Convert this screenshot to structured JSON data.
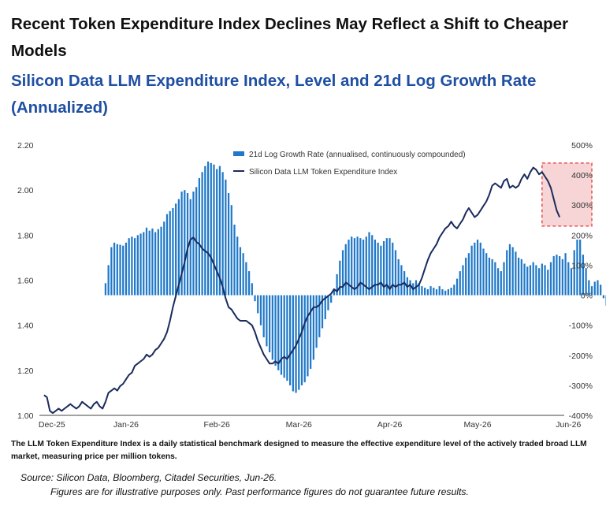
{
  "header": {
    "title": "Recent Token Expenditure Index Declines May Reflect a Shift to Cheaper Models",
    "subtitle": "Silicon Data LLM Expenditure Index, Level and 21d Log Growth Rate (Annualized)"
  },
  "footer": {
    "description": "The LLM Token Expenditure Index is a daily statistical benchmark designed to measure the effective expenditure level of the actively traded broad LLM market, measuring price per million tokens.",
    "source": "Source: Silicon Data, Bloomberg, Citadel Securities, Jun-26.",
    "disclaimer": "Figures are for illustrative purposes only. Past performance figures do not guarantee future results."
  },
  "chart_data": {
    "type": "bar+line",
    "x_tick_labels": [
      "Dec-25",
      "Jan-26",
      "Feb-26",
      "Mar-26",
      "Apr-26",
      "May-26",
      "Jun-26"
    ],
    "y_left": {
      "lim": [
        1.0,
        2.2
      ],
      "ticks": [
        "1.00",
        "1.20",
        "1.40",
        "1.60",
        "1.80",
        "2.00",
        "2.20"
      ]
    },
    "y_right": {
      "lim": [
        -400,
        500
      ],
      "ticks": [
        "-400%",
        "-300%",
        "-200%",
        "-100%",
        "0%",
        "100%",
        "200%",
        "300%",
        "400%",
        "500%"
      ]
    },
    "series": [
      {
        "name": "21d Log Growth Rate (annualised, continuously compounded)",
        "kind": "bar",
        "axis": "right",
        "color": "#1f78c8",
        "x_start": 21,
        "values": [
          40,
          100,
          160,
          175,
          170,
          168,
          165,
          175,
          190,
          195,
          190,
          200,
          205,
          210,
          225,
          215,
          222,
          210,
          220,
          228,
          245,
          270,
          280,
          290,
          305,
          320,
          345,
          350,
          340,
          320,
          345,
          360,
          390,
          410,
          430,
          445,
          440,
          435,
          420,
          430,
          410,
          385,
          340,
          300,
          235,
          195,
          160,
          140,
          110,
          80,
          40,
          -20,
          -60,
          -100,
          -140,
          -170,
          -190,
          -215,
          -235,
          -250,
          -265,
          -275,
          -285,
          -300,
          -320,
          -325,
          -315,
          -300,
          -290,
          -270,
          -245,
          -215,
          -175,
          -140,
          -110,
          -80,
          -50,
          -25,
          20,
          70,
          115,
          150,
          170,
          185,
          195,
          190,
          195,
          190,
          185,
          195,
          210,
          200,
          185,
          175,
          165,
          180,
          190,
          190,
          175,
          150,
          120,
          100,
          80,
          60,
          50,
          40,
          50,
          40,
          30,
          25,
          20,
          30,
          25,
          20,
          30,
          20,
          15,
          20,
          25,
          35,
          55,
          80,
          100,
          125,
          140,
          165,
          175,
          185,
          175,
          155,
          140,
          125,
          120,
          110,
          90,
          80,
          110,
          150,
          170,
          160,
          145,
          125,
          120,
          105,
          95,
          100,
          110,
          100,
          90,
          105,
          100,
          85,
          110,
          130,
          135,
          130,
          120,
          140,
          110,
          90,
          150,
          185,
          185,
          135,
          90,
          50,
          30,
          45,
          50,
          35,
          -10,
          -35,
          -70
        ]
      },
      {
        "name": "Silicon Data LLM Token Expenditure Index",
        "kind": "line",
        "axis": "left",
        "color": "#1a2b5e",
        "values": [
          1.09,
          1.08,
          1.02,
          1.01,
          1.02,
          1.03,
          1.02,
          1.03,
          1.04,
          1.05,
          1.04,
          1.03,
          1.04,
          1.06,
          1.05,
          1.04,
          1.03,
          1.05,
          1.06,
          1.04,
          1.03,
          1.06,
          1.1,
          1.11,
          1.12,
          1.11,
          1.13,
          1.14,
          1.16,
          1.18,
          1.19,
          1.22,
          1.23,
          1.24,
          1.25,
          1.27,
          1.26,
          1.27,
          1.29,
          1.3,
          1.32,
          1.34,
          1.37,
          1.42,
          1.48,
          1.53,
          1.58,
          1.63,
          1.68,
          1.74,
          1.78,
          1.79,
          1.77,
          1.76,
          1.74,
          1.73,
          1.72,
          1.7,
          1.67,
          1.64,
          1.61,
          1.57,
          1.52,
          1.48,
          1.47,
          1.45,
          1.43,
          1.42,
          1.42,
          1.42,
          1.41,
          1.4,
          1.37,
          1.33,
          1.3,
          1.27,
          1.25,
          1.23,
          1.23,
          1.24,
          1.23,
          1.25,
          1.26,
          1.25,
          1.27,
          1.29,
          1.31,
          1.34,
          1.37,
          1.41,
          1.44,
          1.46,
          1.48,
          1.48,
          1.49,
          1.51,
          1.52,
          1.53,
          1.54,
          1.56,
          1.55,
          1.57,
          1.57,
          1.59,
          1.58,
          1.57,
          1.56,
          1.57,
          1.59,
          1.58,
          1.57,
          1.56,
          1.57,
          1.58,
          1.58,
          1.59,
          1.57,
          1.58,
          1.56,
          1.58,
          1.57,
          1.58,
          1.58,
          1.59,
          1.57,
          1.58,
          1.56,
          1.57,
          1.58,
          1.61,
          1.65,
          1.69,
          1.72,
          1.74,
          1.76,
          1.79,
          1.81,
          1.83,
          1.84,
          1.86,
          1.84,
          1.83,
          1.85,
          1.87,
          1.9,
          1.92,
          1.9,
          1.88,
          1.89,
          1.91,
          1.93,
          1.95,
          1.98,
          2.02,
          2.03,
          2.02,
          2.01,
          2.04,
          2.05,
          2.01,
          2.02,
          2.01,
          2.02,
          2.05,
          2.07,
          2.05,
          2.08,
          2.1,
          2.09,
          2.07,
          2.08,
          2.06,
          2.04,
          2.01,
          1.96,
          1.91,
          1.88
        ]
      }
    ],
    "annotation": {
      "kind": "highlight-box",
      "x_range": [
        170,
        187
      ],
      "y_right_range": [
        230,
        440
      ],
      "fill": "#f4c7c9",
      "border": "#e03a3a",
      "style": "dashed"
    },
    "grid": false,
    "legend": "top-left"
  }
}
